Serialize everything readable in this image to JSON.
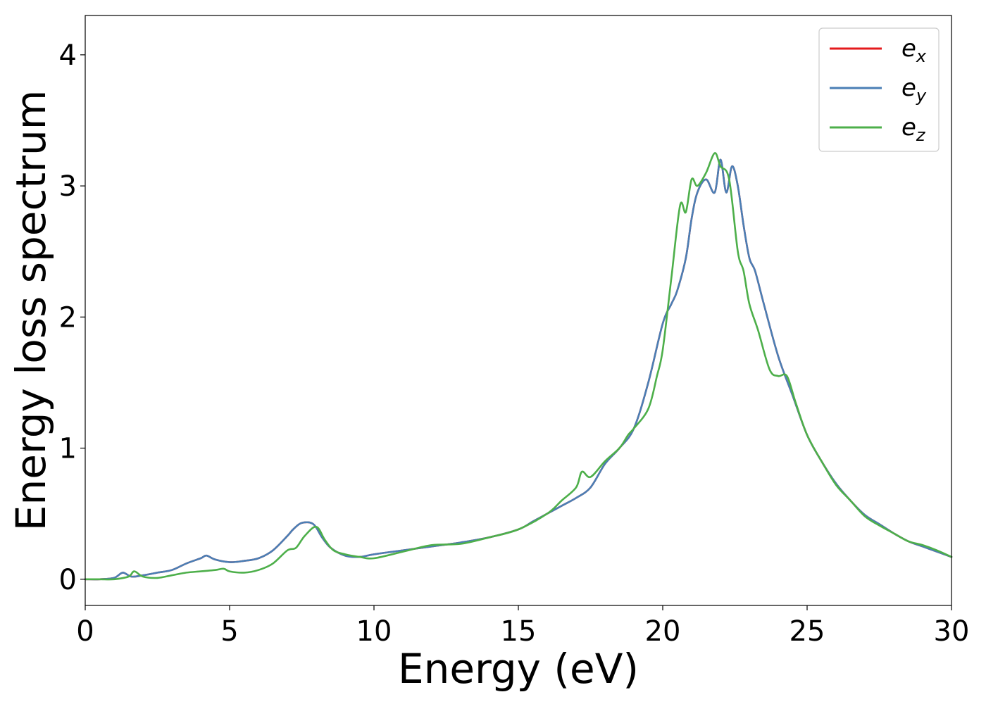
{
  "chart_data": {
    "type": "line",
    "title": "",
    "xlabel": "Energy (eV)",
    "ylabel": "Energy loss spectrum",
    "xlim": [
      0,
      30
    ],
    "ylim": [
      -0.2,
      4.3
    ],
    "xticks": [
      0,
      5,
      10,
      15,
      20,
      25,
      30
    ],
    "yticks": [
      0,
      1,
      2,
      3,
      4
    ],
    "grid": false,
    "legend_position": "top-right",
    "series": [
      {
        "name": "e",
        "subscript": "x",
        "color": "#e41a1c",
        "x": [
          0,
          0.5,
          1,
          1.3,
          1.6,
          2,
          2.5,
          3,
          3.5,
          4,
          4.2,
          4.5,
          5,
          5.5,
          6,
          6.5,
          7,
          7.2,
          7.5,
          7.9,
          8.2,
          8.5,
          9,
          9.5,
          10,
          11,
          12,
          13,
          14,
          15,
          15.5,
          16,
          16.5,
          17,
          17.5,
          18,
          18.5,
          19,
          19.5,
          20,
          20.3,
          20.5,
          20.8,
          21,
          21.2,
          21.5,
          21.8,
          22,
          22.2,
          22.4,
          22.6,
          22.8,
          23,
          23.2,
          23.5,
          24,
          24.5,
          25,
          25.5,
          26,
          26.5,
          27,
          27.5,
          28,
          28.5,
          29,
          29.5,
          30
        ],
        "y": [
          0.0,
          0.0,
          0.01,
          0.05,
          0.02,
          0.03,
          0.05,
          0.07,
          0.12,
          0.16,
          0.18,
          0.15,
          0.13,
          0.14,
          0.16,
          0.22,
          0.33,
          0.38,
          0.43,
          0.42,
          0.32,
          0.24,
          0.18,
          0.17,
          0.19,
          0.22,
          0.25,
          0.28,
          0.32,
          0.38,
          0.44,
          0.5,
          0.56,
          0.62,
          0.7,
          0.88,
          1.0,
          1.15,
          1.5,
          1.95,
          2.1,
          2.2,
          2.45,
          2.75,
          2.95,
          3.05,
          2.95,
          3.2,
          2.95,
          3.15,
          3.0,
          2.7,
          2.45,
          2.35,
          2.1,
          1.7,
          1.4,
          1.1,
          0.9,
          0.73,
          0.6,
          0.49,
          0.42,
          0.35,
          0.29,
          0.25,
          0.21,
          0.17
        ]
      },
      {
        "name": "e",
        "subscript": "y",
        "color": "#4a7fb5",
        "x": [
          0,
          0.5,
          1,
          1.3,
          1.6,
          2,
          2.5,
          3,
          3.5,
          4,
          4.2,
          4.5,
          5,
          5.5,
          6,
          6.5,
          7,
          7.2,
          7.5,
          7.9,
          8.2,
          8.5,
          9,
          9.5,
          10,
          11,
          12,
          13,
          14,
          15,
          15.5,
          16,
          16.5,
          17,
          17.5,
          18,
          18.5,
          19,
          19.5,
          20,
          20.3,
          20.5,
          20.8,
          21,
          21.2,
          21.5,
          21.8,
          22,
          22.2,
          22.4,
          22.6,
          22.8,
          23,
          23.2,
          23.5,
          24,
          24.5,
          25,
          25.5,
          26,
          26.5,
          27,
          27.5,
          28,
          28.5,
          29,
          29.5,
          30
        ],
        "y": [
          0.0,
          0.0,
          0.01,
          0.05,
          0.02,
          0.03,
          0.05,
          0.07,
          0.12,
          0.16,
          0.18,
          0.15,
          0.13,
          0.14,
          0.16,
          0.22,
          0.33,
          0.38,
          0.43,
          0.42,
          0.32,
          0.24,
          0.18,
          0.17,
          0.19,
          0.22,
          0.25,
          0.28,
          0.32,
          0.38,
          0.44,
          0.5,
          0.56,
          0.62,
          0.7,
          0.88,
          1.0,
          1.15,
          1.5,
          1.95,
          2.1,
          2.2,
          2.45,
          2.75,
          2.95,
          3.05,
          2.95,
          3.2,
          2.95,
          3.15,
          3.0,
          2.7,
          2.45,
          2.35,
          2.1,
          1.7,
          1.4,
          1.1,
          0.9,
          0.73,
          0.6,
          0.49,
          0.42,
          0.35,
          0.29,
          0.25,
          0.21,
          0.17
        ]
      },
      {
        "name": "e",
        "subscript": "z",
        "color": "#4daf4a",
        "x": [
          0,
          0.5,
          1,
          1.5,
          1.7,
          2,
          2.5,
          3,
          3.5,
          4,
          4.5,
          4.8,
          5,
          5.5,
          6,
          6.5,
          7,
          7.3,
          7.6,
          8,
          8.3,
          8.6,
          9,
          9.5,
          10,
          11,
          12,
          13,
          14,
          15,
          16,
          16.5,
          17,
          17.2,
          17.5,
          18,
          18.5,
          18.8,
          19,
          19.5,
          19.8,
          20,
          20.3,
          20.6,
          20.8,
          21,
          21.2,
          21.5,
          21.8,
          22,
          22.3,
          22.6,
          22.8,
          23,
          23.3,
          23.7,
          24,
          24.3,
          24.6,
          25,
          25.5,
          26,
          26.5,
          27,
          27.5,
          28,
          28.5,
          29,
          29.5,
          30
        ],
        "y": [
          0.0,
          0.0,
          0.0,
          0.02,
          0.06,
          0.02,
          0.01,
          0.03,
          0.05,
          0.06,
          0.07,
          0.08,
          0.06,
          0.05,
          0.07,
          0.12,
          0.22,
          0.24,
          0.33,
          0.4,
          0.3,
          0.22,
          0.19,
          0.17,
          0.16,
          0.21,
          0.26,
          0.27,
          0.32,
          0.38,
          0.5,
          0.6,
          0.7,
          0.82,
          0.78,
          0.9,
          1.0,
          1.1,
          1.15,
          1.3,
          1.55,
          1.75,
          2.3,
          2.85,
          2.8,
          3.05,
          3.0,
          3.1,
          3.25,
          3.15,
          3.05,
          2.5,
          2.35,
          2.1,
          1.9,
          1.6,
          1.55,
          1.55,
          1.35,
          1.1,
          0.9,
          0.72,
          0.6,
          0.48,
          0.41,
          0.35,
          0.29,
          0.26,
          0.22,
          0.17
        ]
      }
    ]
  }
}
